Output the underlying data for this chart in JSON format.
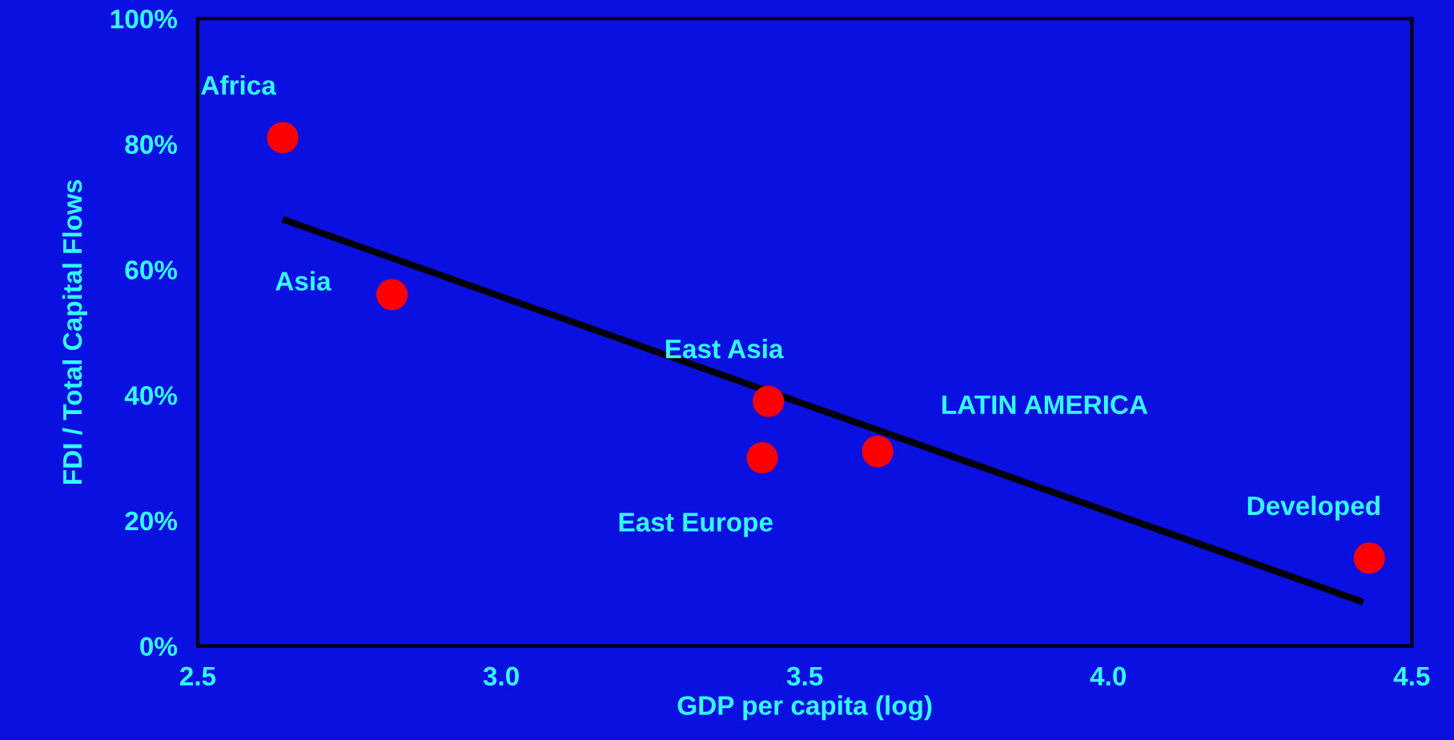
{
  "chart_data": {
    "type": "scatter",
    "xlabel": "GDP per capita (log)",
    "ylabel": "FDI / Total Capital Flows",
    "xlim": [
      2.5,
      4.5
    ],
    "xticks": [
      2.5,
      {
        "value": 3,
        "label": "3.0"
      },
      3.5,
      {
        "value": 4,
        "label": "4.0"
      },
      4.5
    ],
    "ylim": [
      0,
      100
    ],
    "yticks": [
      {
        "value": 0,
        "label": "0%"
      },
      {
        "value": 20,
        "label": "20%"
      },
      {
        "value": 40,
        "label": "40%"
      },
      {
        "value": 60,
        "label": "60%"
      },
      {
        "value": 80,
        "label": "80%"
      },
      {
        "value": 100,
        "label": "100%"
      }
    ],
    "grid": false,
    "legend": false,
    "marker": "circle",
    "series": [
      {
        "type": "scatter",
        "color": "#ff0000",
        "x": [
          2.64,
          2.82,
          3.44,
          3.43,
          3.62,
          4.43
        ],
        "values": [
          81,
          56,
          39,
          30,
          31,
          14
        ]
      },
      {
        "type": "line",
        "color": "#000000",
        "line_style": "solid",
        "marker": "none",
        "x": [
          2.64,
          4.42
        ],
        "values": [
          68,
          7
        ]
      }
    ],
    "annotations": [
      {
        "text": "Africa",
        "x": 2.64,
        "y": 81
      },
      {
        "text": "Asia",
        "x": 2.82,
        "y": 56
      },
      {
        "text": "East Asia",
        "x": 3.44,
        "y": 39
      },
      {
        "text": "East Europe",
        "x": 3.43,
        "y": 30
      },
      {
        "text": "LATIN AMERICA",
        "x": 3.62,
        "y": 31
      },
      {
        "text": "Developed",
        "x": 4.43,
        "y": 14
      }
    ]
  }
}
